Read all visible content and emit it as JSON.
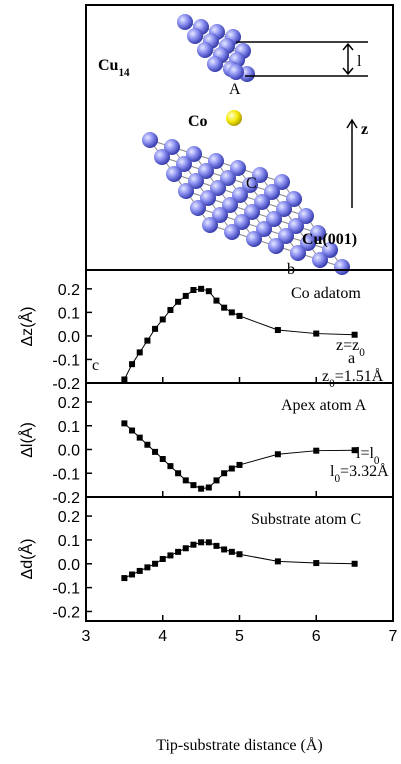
{
  "diagram": {
    "cluster_label": [
      "Cu",
      "14"
    ],
    "apex_label": "A",
    "adatom_label": "Co",
    "axis_label": "z",
    "substrate_atom_label": "C",
    "substrate_label": "Cu(001)",
    "length_label": "l"
  },
  "chart_data": [
    {
      "type": "line",
      "ylabel": "Δz(Å)",
      "x": [
        3.5,
        3.6,
        3.7,
        3.8,
        3.9,
        4.0,
        4.1,
        4.2,
        4.3,
        4.4,
        4.5,
        4.6,
        4.7,
        4.8,
        4.9,
        5.0,
        5.5,
        6.0,
        6.5
      ],
      "series": [
        {
          "name": "Co adatom",
          "color": "#000000",
          "values": [
            -0.185,
            -0.12,
            -0.07,
            -0.02,
            0.03,
            0.07,
            0.11,
            0.145,
            0.17,
            0.195,
            0.2,
            0.19,
            0.15,
            0.12,
            0.1,
            0.085,
            0.025,
            0.01,
            0.005
          ]
        }
      ],
      "annotations": [
        [
          "Co adatom"
        ],
        [
          "z=z",
          "0"
        ],
        [
          "a"
        ],
        [
          "z",
          "0",
          "=1.51Å"
        ],
        [
          "b"
        ],
        [
          "c"
        ]
      ],
      "xlim": [
        3,
        7
      ],
      "ylim": [
        -0.2,
        0.28
      ],
      "yticks": [
        -0.2,
        -0.1,
        {
          "value": 0,
          "label": "0.0"
        },
        0.1,
        0.2
      ]
    },
    {
      "type": "line",
      "ylabel": "Δl(Å)",
      "x": [
        3.5,
        3.6,
        3.7,
        3.8,
        3.9,
        4.0,
        4.1,
        4.2,
        4.3,
        4.4,
        4.5,
        4.6,
        4.7,
        4.8,
        4.9,
        5.0,
        5.5,
        6.0,
        6.5
      ],
      "series": [
        {
          "name": "Apex atom A",
          "color": "#000000",
          "values": [
            0.11,
            0.08,
            0.05,
            0.02,
            -0.01,
            -0.04,
            -0.07,
            -0.1,
            -0.13,
            -0.15,
            -0.165,
            -0.16,
            -0.13,
            -0.1,
            -0.08,
            -0.065,
            -0.02,
            -0.005,
            -0.003
          ]
        }
      ],
      "annotations": [
        [
          "Apex atom A"
        ],
        [
          "l=l",
          "0"
        ],
        [
          "l",
          "0",
          "=3.32Å"
        ]
      ],
      "xlim": [
        3,
        7
      ],
      "ylim": [
        -0.2,
        0.28
      ],
      "yticks": [
        -0.2,
        -0.1,
        {
          "value": 0,
          "label": "0.0"
        },
        0.1,
        0.2
      ]
    },
    {
      "type": "line",
      "ylabel": "Δd(Å)",
      "xlabel": "Tip-substrate distance (Å)",
      "x": [
        3.5,
        3.6,
        3.7,
        3.8,
        3.9,
        4.0,
        4.1,
        4.2,
        4.3,
        4.4,
        4.5,
        4.6,
        4.7,
        4.8,
        4.9,
        5.0,
        5.5,
        6.0,
        6.5
      ],
      "series": [
        {
          "name": "Substrate atom C",
          "color": "#000000",
          "values": [
            -0.06,
            -0.045,
            -0.03,
            -0.015,
            0.0,
            0.02,
            0.035,
            0.05,
            0.065,
            0.08,
            0.09,
            0.09,
            0.075,
            0.06,
            0.05,
            0.04,
            0.01,
            0.003,
            0.0
          ]
        }
      ],
      "annotations": [
        [
          "Substrate atom C"
        ]
      ],
      "xlim": [
        3,
        7
      ],
      "ylim": [
        -0.24,
        0.28
      ],
      "xticks": [
        3,
        4,
        5,
        6,
        7
      ],
      "yticks": [
        -0.2,
        -0.1,
        {
          "value": 0,
          "label": "0.0"
        },
        0.1,
        0.2
      ]
    }
  ]
}
